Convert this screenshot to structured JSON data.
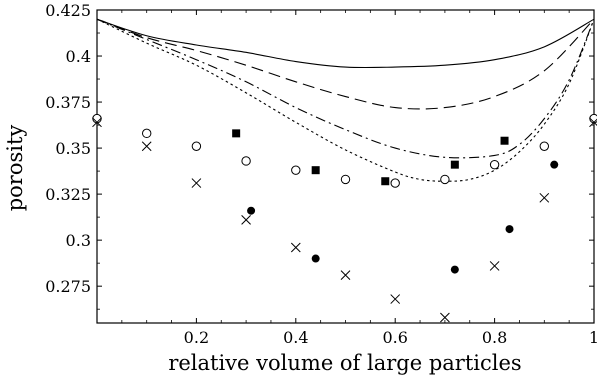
{
  "chart_data": {
    "type": "scatter",
    "xlabel": "relative volume of large particles",
    "ylabel": "porosity",
    "xlim": [
      0,
      1
    ],
    "ylim": [
      0.255,
      0.425
    ],
    "x_ticks": [
      {
        "value": 0.2,
        "label": "0.2"
      },
      {
        "value": 0.4,
        "label": "0.4"
      },
      {
        "value": 0.6,
        "label": "0.6"
      },
      {
        "value": 0.8,
        "label": "0.8"
      },
      {
        "value": 1.0,
        "label": "1"
      }
    ],
    "y_ticks": [
      {
        "value": 0.275,
        "label": "0.275"
      },
      {
        "value": 0.3,
        "label": "0.3"
      },
      {
        "value": 0.325,
        "label": "0.325"
      },
      {
        "value": 0.35,
        "label": "0.35"
      },
      {
        "value": 0.375,
        "label": "0.375"
      },
      {
        "value": 0.4,
        "label": "0.4"
      },
      {
        "value": 0.425,
        "label": "0.425"
      }
    ],
    "grid": false,
    "legend": "none",
    "series": [
      {
        "style": "solid-line",
        "x": [
          0,
          0.1,
          0.2,
          0.3,
          0.4,
          0.5,
          0.6,
          0.7,
          0.8,
          0.9,
          1.0
        ],
        "y": [
          0.42,
          0.411,
          0.406,
          0.402,
          0.397,
          0.394,
          0.394,
          0.395,
          0.398,
          0.405,
          0.42
        ]
      },
      {
        "style": "dashed-line",
        "x": [
          0,
          0.1,
          0.2,
          0.3,
          0.4,
          0.5,
          0.6,
          0.7,
          0.8,
          0.9,
          1.0
        ],
        "y": [
          0.42,
          0.41,
          0.403,
          0.395,
          0.386,
          0.378,
          0.372,
          0.372,
          0.378,
          0.392,
          0.42
        ]
      },
      {
        "style": "dash-dot-line",
        "x": [
          0,
          0.1,
          0.2,
          0.3,
          0.4,
          0.5,
          0.6,
          0.7,
          0.8,
          0.85,
          0.9,
          0.95,
          1.0
        ],
        "y": [
          0.42,
          0.409,
          0.398,
          0.386,
          0.372,
          0.36,
          0.35,
          0.345,
          0.346,
          0.352,
          0.366,
          0.387,
          0.42
        ]
      },
      {
        "style": "dotted-line",
        "x": [
          0,
          0.1,
          0.2,
          0.3,
          0.4,
          0.5,
          0.6,
          0.65,
          0.7,
          0.75,
          0.8,
          0.85,
          0.9,
          0.95,
          1.0
        ],
        "y": [
          0.42,
          0.407,
          0.395,
          0.38,
          0.364,
          0.349,
          0.337,
          0.333,
          0.332,
          0.333,
          0.338,
          0.348,
          0.363,
          0.385,
          0.42
        ]
      },
      {
        "style": "open-circle",
        "x": [
          0,
          0.1,
          0.2,
          0.3,
          0.4,
          0.5,
          0.6,
          0.7,
          0.8,
          0.9,
          1.0
        ],
        "y": [
          0.366,
          0.358,
          0.351,
          0.343,
          0.338,
          0.333,
          0.331,
          0.333,
          0.341,
          0.351,
          0.366
        ]
      },
      {
        "style": "filled-square",
        "x": [
          0.28,
          0.44,
          0.58,
          0.72,
          0.82
        ],
        "y": [
          0.358,
          0.338,
          0.332,
          0.341,
          0.354
        ]
      },
      {
        "style": "filled-circle",
        "x": [
          0.31,
          0.44,
          0.72,
          0.83,
          0.92
        ],
        "y": [
          0.316,
          0.29,
          0.284,
          0.306,
          0.341
        ]
      },
      {
        "style": "cross",
        "x": [
          0,
          0.1,
          0.2,
          0.3,
          0.4,
          0.5,
          0.6,
          0.7,
          0.8,
          0.9,
          1.0
        ],
        "y": [
          0.364,
          0.351,
          0.331,
          0.311,
          0.296,
          0.281,
          0.268,
          0.258,
          0.286,
          0.323,
          0.364
        ]
      }
    ]
  }
}
